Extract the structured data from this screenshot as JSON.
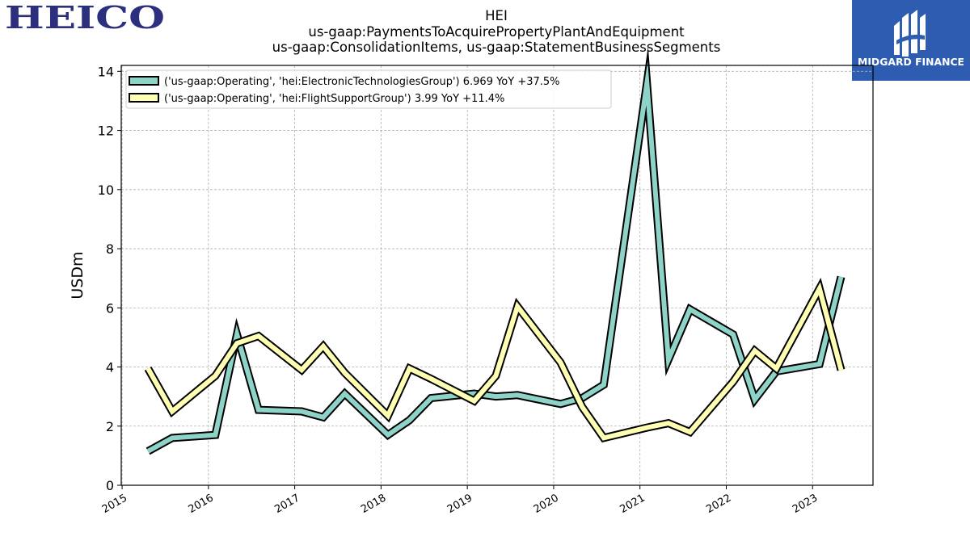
{
  "header": {
    "left_logo_text": "HEICO",
    "right_logo_text": "MIDGARD FINANCE"
  },
  "colors": {
    "heico_blue": "#2b2f7e",
    "midgard_blue": "#2e5cb0",
    "series_1": "#8dd3c7",
    "series_2": "#ffffb3",
    "grid": "#b0b0b0"
  },
  "chart_data": {
    "type": "line",
    "title": "HEI",
    "subtitle_lines": [
      "us-gaap:PaymentsToAcquirePropertyPlantAndEquipment",
      "us-gaap:ConsolidationItems, us-gaap:StatementBusinessSegments"
    ],
    "xlabel": "",
    "ylabel": "USDm",
    "xlim": [
      2014.99,
      2023.7
    ],
    "ylim": [
      0,
      14.2
    ],
    "x_ticks": [
      "2015",
      "2016",
      "2017",
      "2018",
      "2019",
      "2020",
      "2021",
      "2022",
      "2023"
    ],
    "y_ticks": [
      "0",
      "2",
      "4",
      "6",
      "8",
      "10",
      "12",
      "14"
    ],
    "grid": true,
    "legend_position": "top-left",
    "x": [
      2015.3,
      2015.58,
      2016.08,
      2016.33,
      2016.58,
      2017.08,
      2017.33,
      2017.58,
      2018.08,
      2018.33,
      2018.58,
      2019.08,
      2019.33,
      2019.58,
      2020.08,
      2020.33,
      2020.58,
      2021.08,
      2021.33,
      2021.58,
      2022.08,
      2022.33,
      2022.58,
      2023.08,
      2023.33
    ],
    "series": [
      {
        "name": "('us-gaap:Operating', 'hei:ElectronicTechnologiesGroup') 6.969 YoY +37.5%",
        "values": [
          1.15,
          1.6,
          1.7,
          5.1,
          2.55,
          2.5,
          2.3,
          3.1,
          1.7,
          2.2,
          2.95,
          3.1,
          3.0,
          3.05,
          2.75,
          2.95,
          3.4,
          13.6,
          4.25,
          5.95,
          5.1,
          2.9,
          3.85,
          4.1,
          7.05
        ]
      },
      {
        "name": "('us-gaap:Operating', 'hei:FlightSupportGroup') 3.99 YoY +11.4%",
        "values": [
          3.95,
          2.5,
          3.7,
          4.8,
          5.05,
          3.9,
          4.7,
          3.8,
          2.35,
          3.95,
          3.6,
          2.85,
          3.7,
          6.05,
          4.15,
          2.65,
          1.6,
          1.95,
          2.1,
          1.8,
          3.5,
          4.55,
          3.95,
          6.65,
          3.9
        ]
      }
    ]
  }
}
